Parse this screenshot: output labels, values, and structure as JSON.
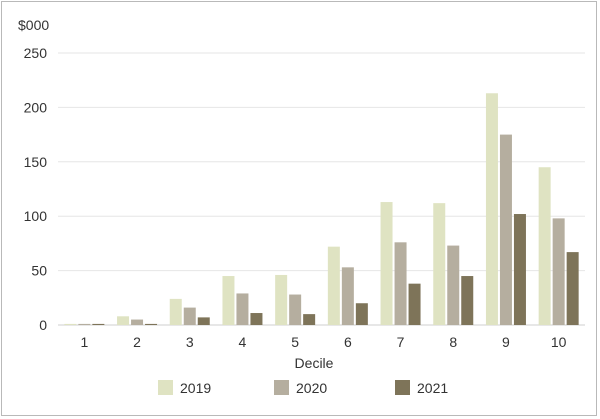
{
  "chart_data": {
    "type": "bar",
    "title": "",
    "ylabel": "$000",
    "xlabel": "Decile",
    "ylim": [
      0,
      250
    ],
    "yticks": [
      0,
      50,
      100,
      150,
      200,
      250
    ],
    "grid": true,
    "legend_position": "bottom",
    "categories": [
      "1",
      "2",
      "3",
      "4",
      "5",
      "6",
      "7",
      "8",
      "9",
      "10"
    ],
    "series": [
      {
        "name": "2019",
        "color": "#dfe3c2",
        "values": [
          1,
          8,
          24,
          45,
          46,
          72,
          113,
          112,
          213,
          145
        ]
      },
      {
        "name": "2020",
        "color": "#b5ae9f",
        "values": [
          1,
          5,
          16,
          29,
          28,
          53,
          76,
          73,
          175,
          98
        ]
      },
      {
        "name": "2021",
        "color": "#7e7459",
        "values": [
          1,
          1,
          7,
          11,
          10,
          20,
          38,
          45,
          102,
          67
        ]
      }
    ]
  }
}
